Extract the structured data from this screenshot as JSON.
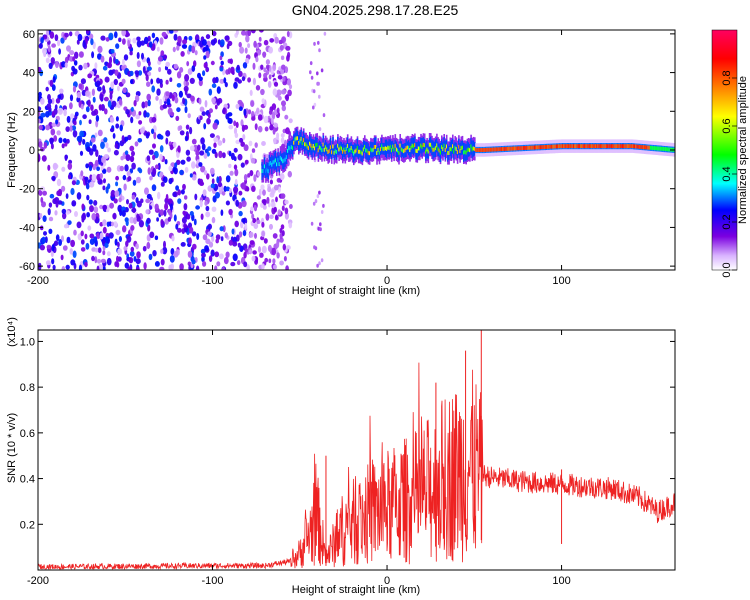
{
  "title": "GN04.2025.298.17.28.E25",
  "chart_data": [
    {
      "type": "heatmap",
      "xlabel": "Height of straight line (km)",
      "ylabel": "Frequency (Hz)",
      "xlim": [
        -200,
        165
      ],
      "ylim": [
        -62,
        62
      ],
      "xticks": [
        -200,
        -100,
        0,
        100
      ],
      "yticks": [
        -60,
        -40,
        -20,
        0,
        20,
        40,
        60
      ],
      "colorbar": {
        "label": "Normalized spectral amplitude",
        "ticks": [
          0.0,
          0.2,
          0.4,
          0.6,
          0.8
        ],
        "colors": [
          "#ffffff",
          "#d9b3ff",
          "#7b00e0",
          "#0000ff",
          "#00ffff",
          "#00ff00",
          "#ffff00",
          "#ff8000",
          "#ff0000",
          "#ff0060"
        ]
      },
      "features": {
        "noise_region_x": [
          -200,
          -55
        ],
        "noise_level": 0.25,
        "ridge_points": [
          {
            "x": -70,
            "y": -10
          },
          {
            "x": -60,
            "y": -5
          },
          {
            "x": -52,
            "y": 5
          },
          {
            "x": -40,
            "y": 1
          },
          {
            "x": -20,
            "y": 0
          },
          {
            "x": 0,
            "y": 0
          },
          {
            "x": 20,
            "y": 1
          },
          {
            "x": 45,
            "y": 0
          },
          {
            "x": 55,
            "y": 0
          },
          {
            "x": 100,
            "y": 2
          },
          {
            "x": 140,
            "y": 2
          },
          {
            "x": 165,
            "y": 0
          }
        ]
      }
    },
    {
      "type": "line",
      "xlabel": "Height of straight line (km)",
      "ylabel": "SNR (10 * v/v)",
      "y_multiplier": "(x10⁴)",
      "xlim": [
        -200,
        165
      ],
      "ylim": [
        0,
        1.05
      ],
      "xticks": [
        -200,
        -100,
        0,
        100
      ],
      "yticks": [
        0.2,
        0.4,
        0.6,
        0.8,
        1.0
      ],
      "color": "#ee2222",
      "profile": [
        {
          "x": -200,
          "y": 0.015
        },
        {
          "x": -100,
          "y": 0.02
        },
        {
          "x": -70,
          "y": 0.02
        },
        {
          "x": -55,
          "y": 0.04
        },
        {
          "x": -50,
          "y": 0.08
        },
        {
          "x": -40,
          "y": 0.25
        },
        {
          "x": -35,
          "y": 0.06
        },
        {
          "x": -25,
          "y": 0.2
        },
        {
          "x": -10,
          "y": 0.27
        },
        {
          "x": 0,
          "y": 0.3
        },
        {
          "x": 20,
          "y": 0.36
        },
        {
          "x": 35,
          "y": 0.45
        },
        {
          "x": 50,
          "y": 0.5
        },
        {
          "x": 55,
          "y": 0.42
        },
        {
          "x": 60,
          "y": 0.41
        },
        {
          "x": 80,
          "y": 0.39
        },
        {
          "x": 100,
          "y": 0.38
        },
        {
          "x": 130,
          "y": 0.36
        },
        {
          "x": 145,
          "y": 0.32
        },
        {
          "x": 155,
          "y": 0.26
        },
        {
          "x": 165,
          "y": 0.3
        }
      ],
      "peaks": [
        {
          "x": -35,
          "y": 0.5
        },
        {
          "x": 28,
          "y": 0.82
        },
        {
          "x": 45,
          "y": 0.96
        },
        {
          "x": 54,
          "y": 1.05
        },
        {
          "x": 100,
          "y": 0.44
        }
      ]
    }
  ]
}
